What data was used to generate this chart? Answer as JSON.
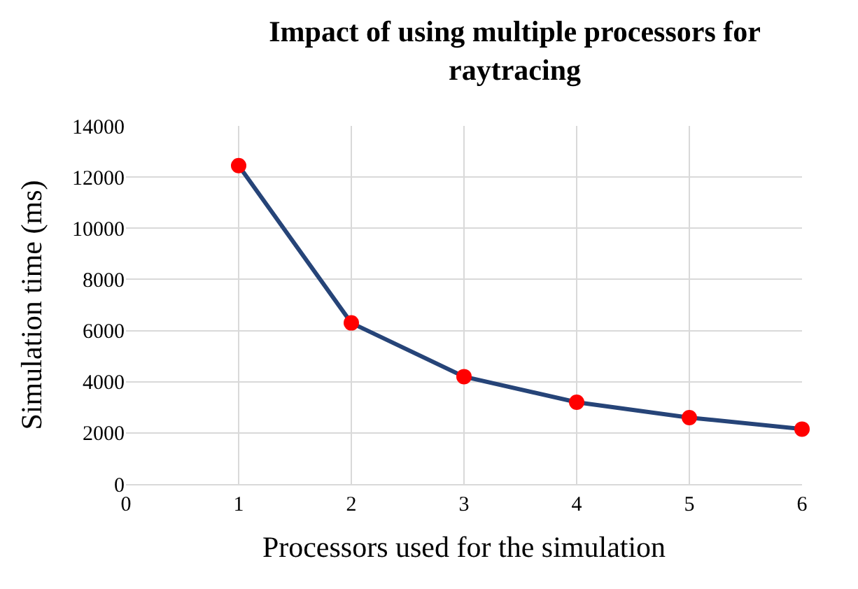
{
  "chart_data": {
    "type": "line",
    "title": "Impact of using multiple processors for raytracing",
    "xlabel": "Processors used for the simulation",
    "ylabel": "Simulation time (ms)",
    "x": [
      1,
      2,
      3,
      4,
      5,
      6
    ],
    "series": [
      {
        "color": "#264478",
        "colors": [
          "#ff0000",
          "#ff0000",
          "#ff0000",
          "#ff0000",
          "#ff0000",
          "#ff0000"
        ],
        "values": [
          12450,
          6300,
          4200,
          3200,
          2600,
          2150
        ]
      }
    ],
    "marker": "circle",
    "line_style": "solid",
    "xlim": [
      0,
      6
    ],
    "xticks": [
      0,
      1,
      2,
      3,
      4,
      5,
      6
    ],
    "ylim": [
      0,
      14000
    ],
    "yticks": [
      0,
      2000,
      4000,
      6000,
      8000,
      10000,
      12000,
      14000
    ],
    "grid": true
  }
}
